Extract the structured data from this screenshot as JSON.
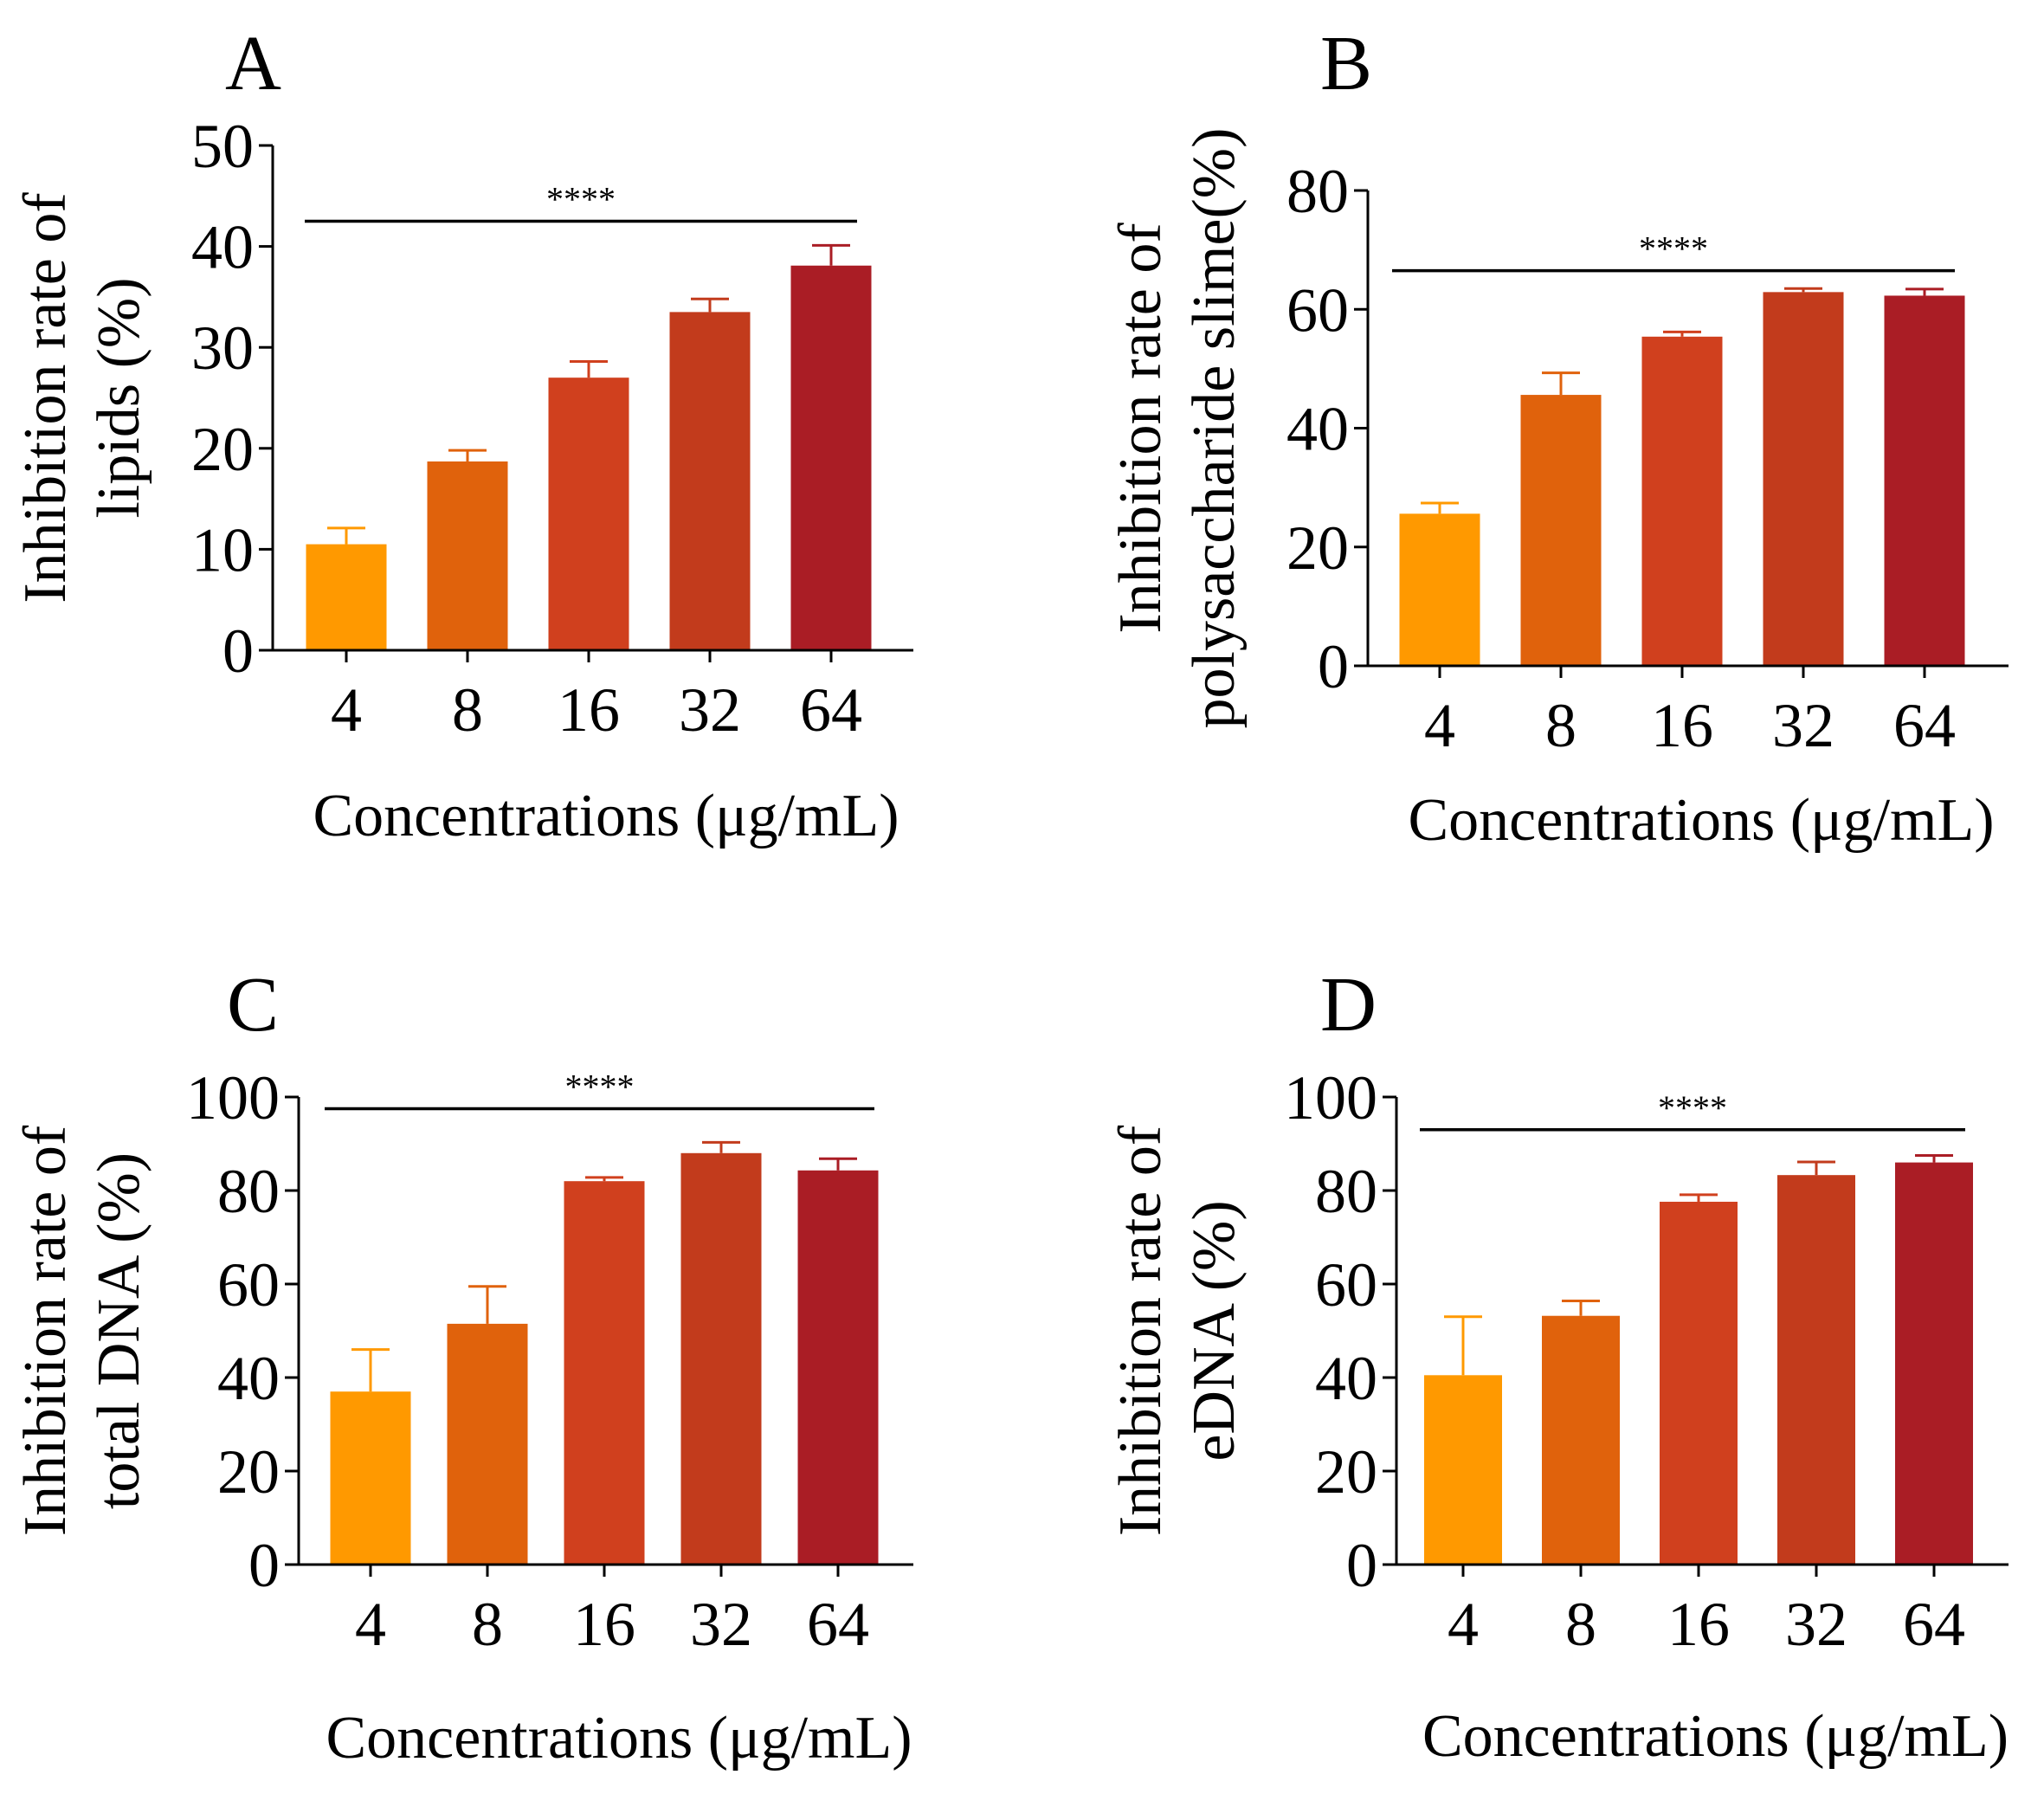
{
  "chart_data": [
    {
      "panel": "A",
      "type": "bar",
      "categories": [
        "4",
        "8",
        "16",
        "32",
        "64"
      ],
      "values": [
        10.5,
        18.7,
        27.0,
        33.5,
        38.1
      ],
      "errors": [
        1.6,
        1.1,
        1.6,
        1.3,
        2.0
      ],
      "colors": [
        "#FF9900",
        "#E0620C",
        "#D0401E",
        "#C23B1C",
        "#AA1D25"
      ],
      "ylabel_lines": [
        "Inhibition rate of",
        "lipids (%)"
      ],
      "xlabel": "Concentrations (μg/mL)",
      "ylim": [
        0,
        50
      ],
      "yticks": [
        0,
        10,
        20,
        30,
        40,
        50
      ],
      "significance": "****",
      "significance_level": 42.5
    },
    {
      "panel": "B",
      "type": "bar",
      "categories": [
        "4",
        "8",
        "16",
        "32",
        "64"
      ],
      "values": [
        25.6,
        45.6,
        55.4,
        62.9,
        62.3
      ],
      "errors": [
        1.8,
        3.7,
        0.8,
        0.6,
        1.1
      ],
      "colors": [
        "#FF9900",
        "#E0620C",
        "#D0401E",
        "#C23B1C",
        "#AA1D25"
      ],
      "ylabel_lines": [
        "Inhibition rate of",
        "polysaccharide slime(%)"
      ],
      "xlabel": "Concentrations (μg/mL)",
      "ylim": [
        0,
        80
      ],
      "yticks": [
        0,
        20,
        40,
        60,
        80
      ],
      "significance": "****",
      "significance_level": 66.5
    },
    {
      "panel": "C",
      "type": "bar",
      "categories": [
        "4",
        "8",
        "16",
        "32",
        "64"
      ],
      "values": [
        37.0,
        51.5,
        82.0,
        88.0,
        84.3
      ],
      "errors": [
        9.0,
        8.0,
        0.8,
        2.3,
        2.5
      ],
      "colors": [
        "#FF9900",
        "#E0620C",
        "#D0401E",
        "#C23B1C",
        "#AA1D25"
      ],
      "ylabel_lines": [
        "Inhibition rate of",
        "total DNA (%)"
      ],
      "xlabel": "Concentrations (μg/mL)",
      "ylim": [
        0,
        100
      ],
      "yticks": [
        0,
        20,
        40,
        60,
        80,
        100
      ],
      "significance": "****",
      "significance_level": 97.5
    },
    {
      "panel": "D",
      "type": "bar",
      "categories": [
        "4",
        "8",
        "16",
        "32",
        "64"
      ],
      "values": [
        40.5,
        53.2,
        77.6,
        83.3,
        86.0
      ],
      "errors": [
        12.5,
        3.2,
        1.5,
        2.8,
        1.5
      ],
      "colors": [
        "#FF9900",
        "#E0620C",
        "#D0401E",
        "#C23B1C",
        "#AA1D25"
      ],
      "ylabel_lines": [
        "Inhibition rate of",
        "eDNA (%)"
      ],
      "xlabel": "Concentrations (μg/mL)",
      "ylim": [
        0,
        100
      ],
      "yticks": [
        0,
        20,
        40,
        60,
        80,
        100
      ],
      "significance": "****",
      "significance_level": 93.0
    }
  ]
}
